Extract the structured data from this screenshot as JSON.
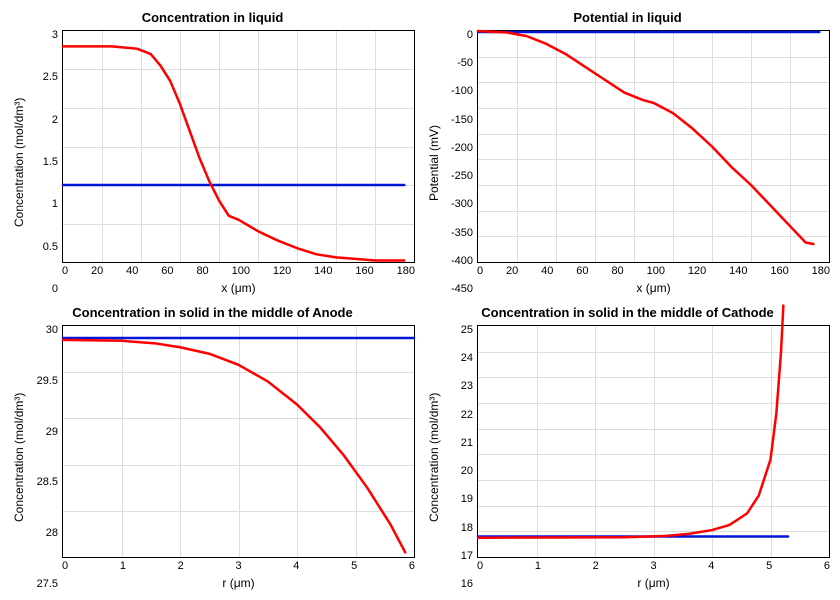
{
  "charts": [
    {
      "id": "tl",
      "title": "Concentration in liquid",
      "xlabel": "x (μm)",
      "ylabel": "Concentration (mol/dm³)",
      "xlim": [
        0,
        180
      ],
      "xtick_step": 20,
      "ylim": [
        0,
        3
      ],
      "ytick_step": 0.5,
      "background_color": "#ffffff",
      "grid_color": "#dddddd",
      "title_fontsize": 13,
      "label_fontsize": 12,
      "tick_fontsize": 11,
      "line_width": 2.5,
      "series": [
        {
          "type": "line",
          "color": "#0016d6",
          "data": [
            [
              0,
              1.0
            ],
            [
              175,
              1.0
            ]
          ]
        },
        {
          "type": "line",
          "color": "#ff0000",
          "data": [
            [
              0,
              2.8
            ],
            [
              25,
              2.8
            ],
            [
              38,
              2.77
            ],
            [
              45,
              2.7
            ],
            [
              50,
              2.55
            ],
            [
              55,
              2.35
            ],
            [
              60,
              2.05
            ],
            [
              65,
              1.7
            ],
            [
              70,
              1.35
            ],
            [
              75,
              1.05
            ],
            [
              80,
              0.8
            ],
            [
              85,
              0.6
            ],
            [
              90,
              0.55
            ],
            [
              100,
              0.4
            ],
            [
              110,
              0.28
            ],
            [
              120,
              0.18
            ],
            [
              130,
              0.1
            ],
            [
              140,
              0.06
            ],
            [
              150,
              0.04
            ],
            [
              160,
              0.02
            ],
            [
              170,
              0.02
            ],
            [
              175,
              0.02
            ]
          ]
        }
      ]
    },
    {
      "id": "tr",
      "title": "Potential in liquid",
      "xlabel": "x (μm)",
      "ylabel": "Potential (mV)",
      "xlim": [
        0,
        180
      ],
      "xtick_step": 20,
      "ylim": [
        -450,
        0
      ],
      "ytick_step": 50,
      "background_color": "#ffffff",
      "grid_color": "#dddddd",
      "title_fontsize": 13,
      "label_fontsize": 12,
      "tick_fontsize": 11,
      "line_width": 2.5,
      "series": [
        {
          "type": "line",
          "color": "#0016d6",
          "data": [
            [
              0,
              -2
            ],
            [
              175,
              -2
            ]
          ]
        },
        {
          "type": "line",
          "color": "#ff0000",
          "data": [
            [
              0,
              0
            ],
            [
              15,
              -3
            ],
            [
              25,
              -10
            ],
            [
              35,
              -25
            ],
            [
              45,
              -45
            ],
            [
              55,
              -70
            ],
            [
              65,
              -95
            ],
            [
              75,
              -120
            ],
            [
              85,
              -135
            ],
            [
              90,
              -140
            ],
            [
              95,
              -150
            ],
            [
              100,
              -160
            ],
            [
              110,
              -190
            ],
            [
              120,
              -225
            ],
            [
              130,
              -265
            ],
            [
              140,
              -300
            ],
            [
              150,
              -340
            ],
            [
              160,
              -380
            ],
            [
              168,
              -412
            ],
            [
              172,
              -415
            ]
          ]
        }
      ]
    },
    {
      "id": "bl",
      "title": "Concentration in solid in the middle of Anode",
      "xlabel": "r (μm)",
      "ylabel": "Concentration (mol/dm³)",
      "xlim": [
        0,
        6
      ],
      "xtick_step": 1,
      "ylim": [
        27.5,
        30
      ],
      "ytick_step": 0.5,
      "background_color": "#ffffff",
      "grid_color": "#dddddd",
      "title_fontsize": 13,
      "label_fontsize": 12,
      "tick_fontsize": 11,
      "line_width": 2.5,
      "series": [
        {
          "type": "line",
          "color": "#0016d6",
          "data": [
            [
              0,
              29.87
            ],
            [
              6,
              29.87
            ]
          ]
        },
        {
          "type": "line",
          "color": "#ff0000",
          "data": [
            [
              0,
              29.85
            ],
            [
              1.0,
              29.84
            ],
            [
              1.6,
              29.81
            ],
            [
              2.0,
              29.77
            ],
            [
              2.5,
              29.7
            ],
            [
              3.0,
              29.58
            ],
            [
              3.5,
              29.4
            ],
            [
              4.0,
              29.15
            ],
            [
              4.4,
              28.9
            ],
            [
              4.8,
              28.6
            ],
            [
              5.2,
              28.25
            ],
            [
              5.6,
              27.85
            ],
            [
              5.85,
              27.55
            ]
          ]
        }
      ]
    },
    {
      "id": "br",
      "title": "Concentration in solid in the middle of Cathode",
      "xlabel": "r (μm)",
      "ylabel": "Concentration (mol/dm³)",
      "xlim": [
        0,
        6
      ],
      "xtick_step": 1,
      "ylim": [
        16,
        25
      ],
      "ytick_step": 1,
      "background_color": "#ffffff",
      "grid_color": "#dddddd",
      "title_fontsize": 13,
      "label_fontsize": 12,
      "tick_fontsize": 11,
      "line_width": 2.5,
      "series": [
        {
          "type": "line",
          "color": "#0016d6",
          "data": [
            [
              0,
              16.8
            ],
            [
              5.3,
              16.8
            ]
          ]
        },
        {
          "type": "line",
          "color": "#ff0000",
          "data": [
            [
              0,
              16.75
            ],
            [
              2.5,
              16.77
            ],
            [
              3.2,
              16.82
            ],
            [
              3.6,
              16.9
            ],
            [
              4.0,
              17.05
            ],
            [
              4.3,
              17.25
            ],
            [
              4.6,
              17.7
            ],
            [
              4.8,
              18.4
            ],
            [
              5.0,
              19.8
            ],
            [
              5.1,
              21.6
            ],
            [
              5.18,
              24.0
            ],
            [
              5.22,
              25.8
            ]
          ]
        }
      ]
    }
  ]
}
